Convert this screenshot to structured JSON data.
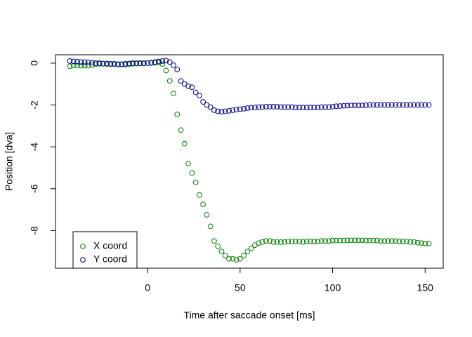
{
  "chart_data": {
    "type": "scatter",
    "xlabel": "Time after saccade onset [ms]",
    "ylabel": "Position [dva]",
    "x": [
      -42,
      -40,
      -38,
      -36,
      -34,
      -32,
      -30,
      -28,
      -26,
      -24,
      -22,
      -20,
      -18,
      -16,
      -14,
      -12,
      -10,
      -8,
      -6,
      -4,
      -2,
      0,
      2,
      4,
      6,
      8,
      10,
      12,
      14,
      16,
      18,
      20,
      22,
      24,
      26,
      28,
      30,
      32,
      34,
      36,
      38,
      40,
      42,
      44,
      46,
      48,
      50,
      52,
      54,
      56,
      58,
      60,
      62,
      64,
      66,
      68,
      70,
      72,
      74,
      76,
      78,
      80,
      82,
      84,
      86,
      88,
      90,
      92,
      94,
      96,
      98,
      100,
      102,
      104,
      106,
      108,
      110,
      112,
      114,
      116,
      118,
      120,
      122,
      124,
      126,
      128,
      130,
      132,
      134,
      136,
      138,
      140,
      142,
      144,
      146,
      148,
      150,
      152
    ],
    "series": [
      {
        "name": "X coord",
        "color": "#008000",
        "values": [
          -0.15,
          -0.12,
          -0.12,
          -0.12,
          -0.12,
          -0.12,
          -0.1,
          -0.05,
          -0.03,
          -0.03,
          -0.05,
          -0.05,
          -0.05,
          -0.07,
          -0.07,
          -0.07,
          -0.05,
          -0.03,
          -0.02,
          -0.02,
          -0.02,
          0.0,
          0.0,
          0.02,
          0.03,
          -0.05,
          -0.35,
          -0.85,
          -1.45,
          -2.45,
          -3.2,
          -3.85,
          -4.8,
          -5.25,
          -5.7,
          -6.3,
          -6.75,
          -7.25,
          -7.8,
          -8.5,
          -8.75,
          -9.0,
          -9.2,
          -9.35,
          -9.35,
          -9.4,
          -9.35,
          -9.2,
          -9.0,
          -8.85,
          -8.7,
          -8.6,
          -8.55,
          -8.5,
          -8.5,
          -8.55,
          -8.55,
          -8.55,
          -8.55,
          -8.52,
          -8.52,
          -8.52,
          -8.52,
          -8.55,
          -8.52,
          -8.52,
          -8.52,
          -8.52,
          -8.5,
          -8.5,
          -8.5,
          -8.48,
          -8.48,
          -8.48,
          -8.48,
          -8.47,
          -8.47,
          -8.47,
          -8.47,
          -8.47,
          -8.48,
          -8.48,
          -8.48,
          -8.48,
          -8.5,
          -8.5,
          -8.5,
          -8.5,
          -8.5,
          -8.52,
          -8.52,
          -8.52,
          -8.55,
          -8.55,
          -8.58,
          -8.6,
          -8.62,
          -8.62
        ]
      },
      {
        "name": "Y coord",
        "color": "#00008b",
        "values": [
          0.1,
          0.08,
          0.07,
          0.05,
          0.05,
          0.03,
          0.02,
          0.0,
          0.0,
          -0.02,
          -0.02,
          -0.03,
          -0.03,
          -0.05,
          -0.05,
          -0.03,
          -0.02,
          0.0,
          0.0,
          0.0,
          0.0,
          0.0,
          0.02,
          0.05,
          0.08,
          0.1,
          0.12,
          0.05,
          -0.1,
          -0.3,
          -0.85,
          -1.0,
          -1.1,
          -1.15,
          -1.4,
          -1.55,
          -1.85,
          -2.0,
          -2.1,
          -2.25,
          -2.3,
          -2.32,
          -2.3,
          -2.28,
          -2.25,
          -2.22,
          -2.2,
          -2.18,
          -2.15,
          -2.13,
          -2.12,
          -2.1,
          -2.1,
          -2.08,
          -2.08,
          -2.08,
          -2.08,
          -2.1,
          -2.1,
          -2.1,
          -2.1,
          -2.12,
          -2.12,
          -2.12,
          -2.12,
          -2.12,
          -2.12,
          -2.12,
          -2.1,
          -2.1,
          -2.1,
          -2.08,
          -2.06,
          -2.05,
          -2.04,
          -2.03,
          -2.02,
          -2.02,
          -2.02,
          -2.02,
          -2.01,
          -2.0,
          -2.0,
          -2.0,
          -2.0,
          -2.0,
          -2.0,
          -2.0,
          -2.0,
          -2.0,
          -2.0,
          -2.0,
          -2.0,
          -2.0,
          -2.0,
          -2.0,
          -2.0,
          -2.0
        ]
      }
    ],
    "xlim": [
      -49.76,
      159.76
    ],
    "xticks": [
      0,
      50,
      100,
      150
    ],
    "ylim": [
      -9.8,
      0.4
    ],
    "yticks": [
      0,
      -2,
      -4,
      -6,
      -8
    ],
    "grid": false,
    "legend": "bottomleft"
  }
}
